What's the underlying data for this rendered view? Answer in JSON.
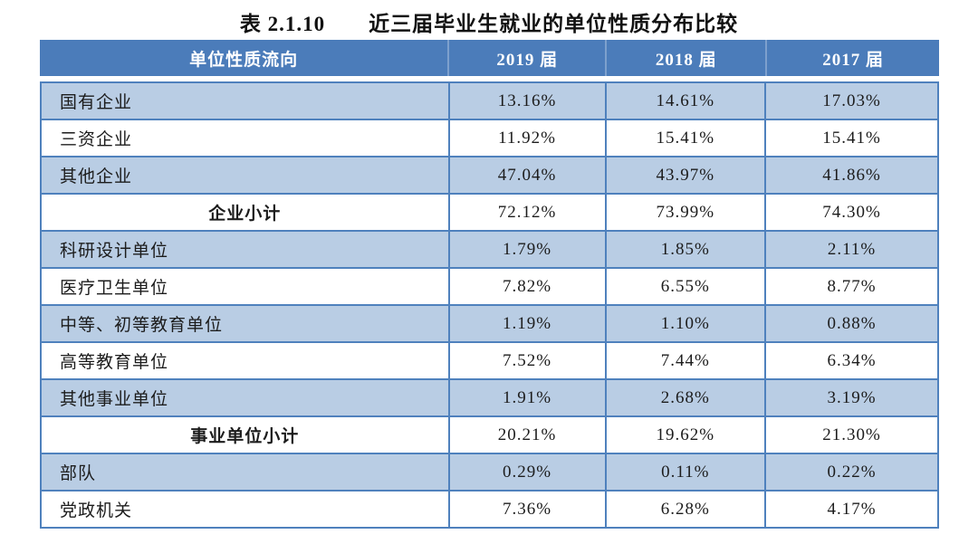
{
  "title": "表 2.1.10　　近三届毕业生就业的单位性质分布比较",
  "colors": {
    "header_background": "#4b7cba",
    "header_text": "#ffffff",
    "banded_row_background": "#b9cde4",
    "border": "#4f81bd",
    "body_text": "#1c1c1c"
  },
  "table": {
    "columns": [
      "单位性质流向",
      "2019 届",
      "2018 届",
      "2017 届"
    ],
    "rows": [
      {
        "label": "国有企业",
        "values": [
          "13.16%",
          "14.61%",
          "17.03%"
        ],
        "type": "data",
        "shaded": true
      },
      {
        "label": "三资企业",
        "values": [
          "11.92%",
          "15.41%",
          "15.41%"
        ],
        "type": "data",
        "shaded": false
      },
      {
        "label": "其他企业",
        "values": [
          "47.04%",
          "43.97%",
          "41.86%"
        ],
        "type": "data",
        "shaded": true
      },
      {
        "label": "企业小计",
        "values": [
          "72.12%",
          "73.99%",
          "74.30%"
        ],
        "type": "subtotal",
        "shaded": false
      },
      {
        "label": "科研设计单位",
        "values": [
          "1.79%",
          "1.85%",
          "2.11%"
        ],
        "type": "data",
        "shaded": true
      },
      {
        "label": "医疗卫生单位",
        "values": [
          "7.82%",
          "6.55%",
          "8.77%"
        ],
        "type": "data",
        "shaded": false
      },
      {
        "label": "中等、初等教育单位",
        "values": [
          "1.19%",
          "1.10%",
          "0.88%"
        ],
        "type": "data",
        "shaded": true
      },
      {
        "label": "高等教育单位",
        "values": [
          "7.52%",
          "7.44%",
          "6.34%"
        ],
        "type": "data",
        "shaded": false
      },
      {
        "label": "其他事业单位",
        "values": [
          "1.91%",
          "2.68%",
          "3.19%"
        ],
        "type": "data",
        "shaded": true
      },
      {
        "label": "事业单位小计",
        "values": [
          "20.21%",
          "19.62%",
          "21.30%"
        ],
        "type": "subtotal",
        "shaded": false
      },
      {
        "label": "部队",
        "values": [
          "0.29%",
          "0.11%",
          "0.22%"
        ],
        "type": "data",
        "shaded": true
      },
      {
        "label": "党政机关",
        "values": [
          "7.36%",
          "6.28%",
          "4.17%"
        ],
        "type": "data",
        "shaded": false
      }
    ]
  }
}
